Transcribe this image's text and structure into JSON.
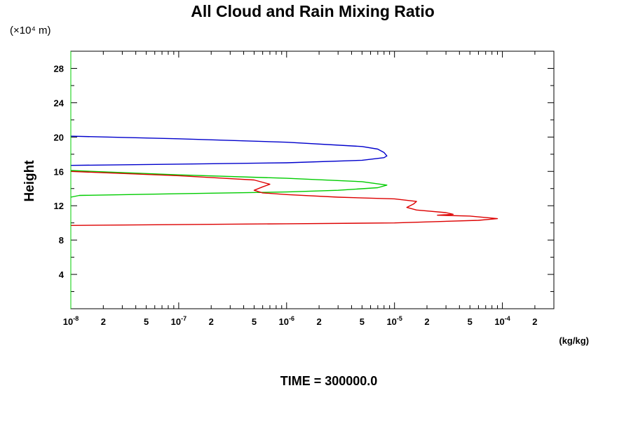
{
  "chart_data": {
    "type": "line",
    "title": "All Cloud and Rain Mixing Ratio",
    "y_scale_note": "(×10⁴ m)",
    "ylabel": "Height",
    "xlabel_unit": "(kg/kg)",
    "footer": "TIME = 300000.0",
    "x_scale": "log",
    "xlim": [
      1e-08,
      0.0003
    ],
    "ylim": [
      0,
      30
    ],
    "y_ticks": [
      4,
      8,
      12,
      16,
      20,
      24,
      28
    ],
    "x_major_labels": [
      {
        "value": 1e-08,
        "mantissa": "10",
        "exp": "-8"
      },
      {
        "value": 1e-07,
        "mantissa": "10",
        "exp": "-7"
      },
      {
        "value": 1e-06,
        "mantissa": "10",
        "exp": "-6"
      },
      {
        "value": 1e-05,
        "mantissa": "10",
        "exp": "-5"
      },
      {
        "value": 0.0001,
        "mantissa": "10",
        "exp": "-4"
      }
    ],
    "x_minor_labels": [
      {
        "value": 2e-08,
        "label": "2"
      },
      {
        "value": 5e-08,
        "label": "5"
      },
      {
        "value": 2e-07,
        "label": "2"
      },
      {
        "value": 5e-07,
        "label": "5"
      },
      {
        "value": 2e-06,
        "label": "2"
      },
      {
        "value": 5e-06,
        "label": "5"
      },
      {
        "value": 2e-05,
        "label": "2"
      },
      {
        "value": 5e-05,
        "label": "5"
      },
      {
        "value": 0.0002,
        "label": "2"
      }
    ],
    "series": [
      {
        "color": "#0000cc",
        "points": [
          [
            1e-08,
            20.1
          ],
          [
            1e-07,
            19.8
          ],
          [
            1e-06,
            19.4
          ],
          [
            5e-06,
            18.9
          ],
          [
            7e-06,
            18.6
          ],
          [
            8e-06,
            18.2
          ],
          [
            8.5e-06,
            17.8
          ],
          [
            8e-06,
            17.6
          ],
          [
            5e-06,
            17.3
          ],
          [
            1e-06,
            17.0
          ],
          [
            1e-07,
            16.85
          ],
          [
            1e-08,
            16.7
          ]
        ]
      },
      {
        "color": "#00cc00",
        "points": [
          [
            1e-08,
            16.1
          ],
          [
            1e-07,
            15.6
          ],
          [
            1e-06,
            15.2
          ],
          [
            5e-06,
            14.8
          ],
          [
            8.5e-06,
            14.4
          ],
          [
            7e-06,
            14.1
          ],
          [
            3e-06,
            13.8
          ],
          [
            1e-06,
            13.6
          ],
          [
            1e-07,
            13.4
          ],
          [
            1.2e-08,
            13.2
          ],
          [
            1e-08,
            13.0
          ]
        ]
      },
      {
        "color": "#dd0000",
        "points": [
          [
            1e-08,
            16.0
          ],
          [
            1e-07,
            15.5
          ],
          [
            5e-07,
            15.0
          ],
          [
            7e-07,
            14.5
          ],
          [
            6e-07,
            14.2
          ],
          [
            5e-07,
            13.8
          ],
          [
            6e-07,
            13.5
          ],
          [
            1e-06,
            13.3
          ],
          [
            3e-06,
            13.0
          ],
          [
            1e-05,
            12.8
          ],
          [
            1.6e-05,
            12.5
          ],
          [
            1.5e-05,
            12.2
          ],
          [
            1.3e-05,
            11.8
          ],
          [
            1.6e-05,
            11.5
          ],
          [
            3e-05,
            11.2
          ],
          [
            3.5e-05,
            11.0
          ],
          [
            2.5e-05,
            10.9
          ],
          [
            5e-05,
            10.8
          ],
          [
            9e-05,
            10.5
          ],
          [
            6e-05,
            10.3
          ],
          [
            1e-05,
            10.0
          ],
          [
            1e-06,
            9.9
          ],
          [
            1e-07,
            9.8
          ],
          [
            1e-08,
            9.7
          ]
        ]
      }
    ]
  }
}
